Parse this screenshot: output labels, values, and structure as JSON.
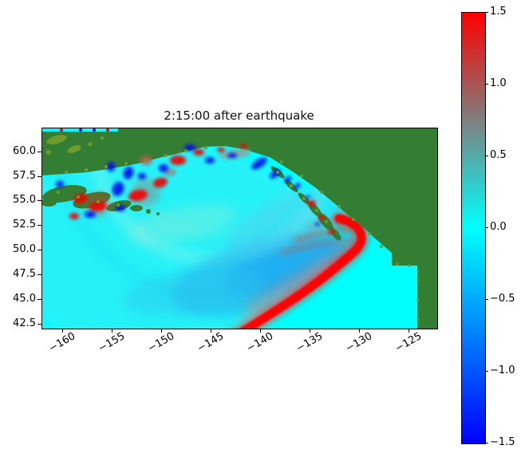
{
  "title": "2:15:00 after earthquake",
  "axes": {
    "x_tick_labels": [
      "−160",
      "−155",
      "−150",
      "−145",
      "−140",
      "−135",
      "−130",
      "−125"
    ],
    "y_tick_labels": [
      "60.0",
      "57.5",
      "55.0",
      "52.5",
      "50.0",
      "47.5",
      "45.0",
      "42.5"
    ]
  },
  "colorbar": {
    "tick_labels": [
      "1.5",
      "1.0",
      "0.5",
      "0.0",
      "−0.5",
      "−1.0",
      "−1.5"
    ],
    "colors": {
      "top": "#ff0000",
      "mid": "#00ffff",
      "bottom": "#0000ff"
    }
  },
  "chart_data": {
    "type": "heatmap",
    "title": "2:15:00 after earthquake",
    "x": {
      "ticks": [
        -160,
        -155,
        -150,
        -145,
        -140,
        -135,
        -130,
        -125
      ],
      "range_est": [
        -162.2,
        -122.3
      ]
    },
    "y": {
      "ticks": [
        60.0,
        57.5,
        55.0,
        52.5,
        50.0,
        47.5,
        45.0,
        42.5
      ],
      "range_est": [
        42.1,
        62.4
      ]
    },
    "colorbar": {
      "range": [
        -1.5,
        1.5
      ],
      "ticks": [
        1.5,
        1.0,
        0.5,
        0.0,
        -0.5,
        -1.0,
        -1.5
      ]
    },
    "colors": {
      "ocean": "#00ffff",
      "land": "#347e34",
      "land_speckle": "#6f9b2a",
      "crest": "#ff0000",
      "trough": "#0000ff"
    },
    "features": [
      {
        "name": "main-wavefront",
        "description": "Bright red arc (crest, values at/above +1.5) hugging the coast near (−130, 51) and sweeping southwest, exiting the bottom edge near (−140, 42.5)"
      },
      {
        "name": "trailing-trough",
        "description": "Broad soft blue depression (about −0.3 to −0.6) behind the wavefront, centered near (−141, 47)"
      },
      {
        "name": "coastal-oscillations",
        "description": "Alternating saturated red and blue patches along the Alaska Peninsula, Kodiak and southeast Alaska shelf between about −162 and −133 longitude, 55 to 60 latitude"
      },
      {
        "name": "undisturbed-water",
        "description": "Flat pure-cyan region (0.0) ahead of the wavefront in the lower right quadrant"
      },
      {
        "name": "ocean-ripples",
        "description": "Faint concentric ripple bands radiating southwest across the open Pacific"
      },
      {
        "name": "land",
        "description": "Dark green landmass (Alaska, Yukon, British Columbia coast) with olive shoreline speckles; staircase-shaped coastline blocks at the right edge"
      }
    ]
  }
}
